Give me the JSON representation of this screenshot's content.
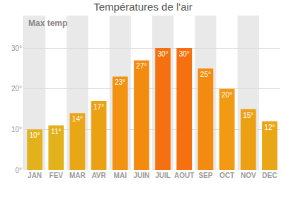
{
  "chart_data": {
    "type": "bar",
    "title": "Températures de l'air",
    "annotations": [
      "Max temp"
    ],
    "categories": [
      "JAN",
      "FEV",
      "MAR",
      "AVR",
      "MAI",
      "JUIN",
      "JUIL",
      "AOUT",
      "SEP",
      "OCT",
      "NOV",
      "DEC"
    ],
    "values": [
      10,
      11,
      14,
      17,
      23,
      27,
      30,
      30,
      25,
      20,
      15,
      12
    ],
    "value_labels": [
      "10°",
      "11°",
      "14°",
      "17°",
      "23°",
      "27°",
      "30°",
      "30°",
      "25°",
      "20°",
      "15°",
      "12°"
    ],
    "colors": [
      "#e2b21c",
      "#e2b21c",
      "#e9a617",
      "#eca014",
      "#f29211",
      "#f38b10",
      "#f5700e",
      "#f5700e",
      "#f38b10",
      "#f29a12",
      "#eca014",
      "#e9a617"
    ],
    "ylim": [
      0,
      38
    ],
    "yticks": [
      {
        "value": 0,
        "label": "0°"
      },
      {
        "value": 10,
        "label": "10°"
      },
      {
        "value": 20,
        "label": "20°"
      },
      {
        "value": 30,
        "label": "30°"
      }
    ],
    "grid": true,
    "data_labels": true
  }
}
